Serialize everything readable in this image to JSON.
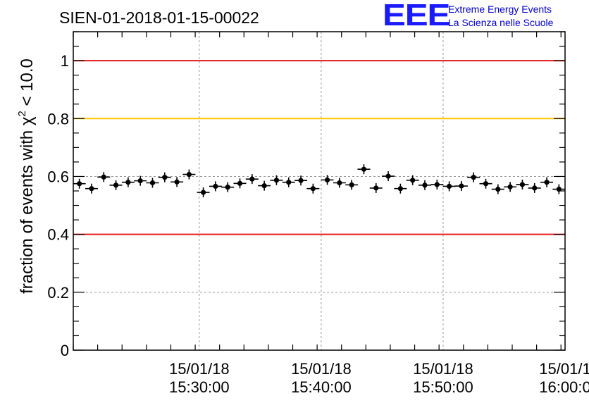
{
  "header": {
    "run_id": "SIEN-01-2018-01-15-00022",
    "logo_mark": "EEE",
    "logo_line1": "Extreme Energy Events",
    "logo_line2": "La Scienza nelle Scuole"
  },
  "colors": {
    "red_line": "#e41a1c",
    "yellow_line": "#ffc300",
    "logo": "#1a1aff",
    "points": "#000000",
    "grid": "#999999"
  },
  "chart_data": {
    "type": "scatter",
    "title": "SIEN-01-2018-01-15-00022",
    "ylabel_parts": [
      "fraction of events with ",
      "χ",
      "2",
      " < 10.0"
    ],
    "ylim": [
      0,
      1.1
    ],
    "yticks": [
      {
        "value": 0,
        "label": "0"
      },
      {
        "value": 0.2,
        "label": "0.2"
      },
      {
        "value": 0.4,
        "label": "0.4"
      },
      {
        "value": 0.6,
        "label": "0.6"
      },
      {
        "value": 0.8,
        "label": "0.8"
      },
      {
        "value": 1,
        "label": "1"
      }
    ],
    "xlim": [
      "15:19:40",
      "16:00:00"
    ],
    "xticks": [
      {
        "value": "15:30:00",
        "label1": "15/01/18",
        "label2": "15:30:00"
      },
      {
        "value": "15:40:00",
        "label1": "15/01/18",
        "label2": "15:40:00"
      },
      {
        "value": "15:50:00",
        "label1": "15/01/18",
        "label2": "15:50:00"
      },
      {
        "value": "16:00:00",
        "label1": "15/01/1",
        "label2": "16:00:0"
      }
    ],
    "reference_lines": [
      {
        "y": 1.0,
        "color": "#e41a1c"
      },
      {
        "y": 0.8,
        "color": "#ffc300"
      },
      {
        "y": 0.4,
        "color": "#e41a1c"
      }
    ],
    "grid": true,
    "points": [
      {
        "x": "15:20:10",
        "y": 0.575
      },
      {
        "x": "15:21:10",
        "y": 0.558
      },
      {
        "x": "15:22:10",
        "y": 0.598
      },
      {
        "x": "15:23:10",
        "y": 0.57
      },
      {
        "x": "15:24:10",
        "y": 0.58
      },
      {
        "x": "15:25:10",
        "y": 0.585
      },
      {
        "x": "15:26:10",
        "y": 0.578
      },
      {
        "x": "15:27:10",
        "y": 0.597
      },
      {
        "x": "15:28:10",
        "y": 0.581
      },
      {
        "x": "15:29:10",
        "y": 0.607
      },
      {
        "x": "15:30:20",
        "y": 0.545
      },
      {
        "x": "15:31:20",
        "y": 0.566
      },
      {
        "x": "15:32:20",
        "y": 0.563
      },
      {
        "x": "15:33:20",
        "y": 0.576
      },
      {
        "x": "15:34:20",
        "y": 0.591
      },
      {
        "x": "15:35:20",
        "y": 0.568
      },
      {
        "x": "15:36:20",
        "y": 0.587
      },
      {
        "x": "15:37:20",
        "y": 0.58
      },
      {
        "x": "15:38:20",
        "y": 0.586
      },
      {
        "x": "15:39:20",
        "y": 0.558
      },
      {
        "x": "15:40:30",
        "y": 0.588
      },
      {
        "x": "15:41:30",
        "y": 0.578
      },
      {
        "x": "15:42:30",
        "y": 0.571
      },
      {
        "x": "15:43:30",
        "y": 0.625
      },
      {
        "x": "15:44:30",
        "y": 0.56
      },
      {
        "x": "15:45:30",
        "y": 0.601
      },
      {
        "x": "15:46:30",
        "y": 0.558
      },
      {
        "x": "15:47:30",
        "y": 0.587
      },
      {
        "x": "15:48:30",
        "y": 0.57
      },
      {
        "x": "15:49:30",
        "y": 0.572
      },
      {
        "x": "15:50:30",
        "y": 0.566
      },
      {
        "x": "15:51:30",
        "y": 0.567
      },
      {
        "x": "15:52:30",
        "y": 0.597
      },
      {
        "x": "15:53:30",
        "y": 0.575
      },
      {
        "x": "15:54:30",
        "y": 0.556
      },
      {
        "x": "15:55:30",
        "y": 0.564
      },
      {
        "x": "15:56:30",
        "y": 0.572
      },
      {
        "x": "15:57:30",
        "y": 0.56
      },
      {
        "x": "15:58:30",
        "y": 0.58
      },
      {
        "x": "15:59:30",
        "y": 0.556
      }
    ]
  }
}
